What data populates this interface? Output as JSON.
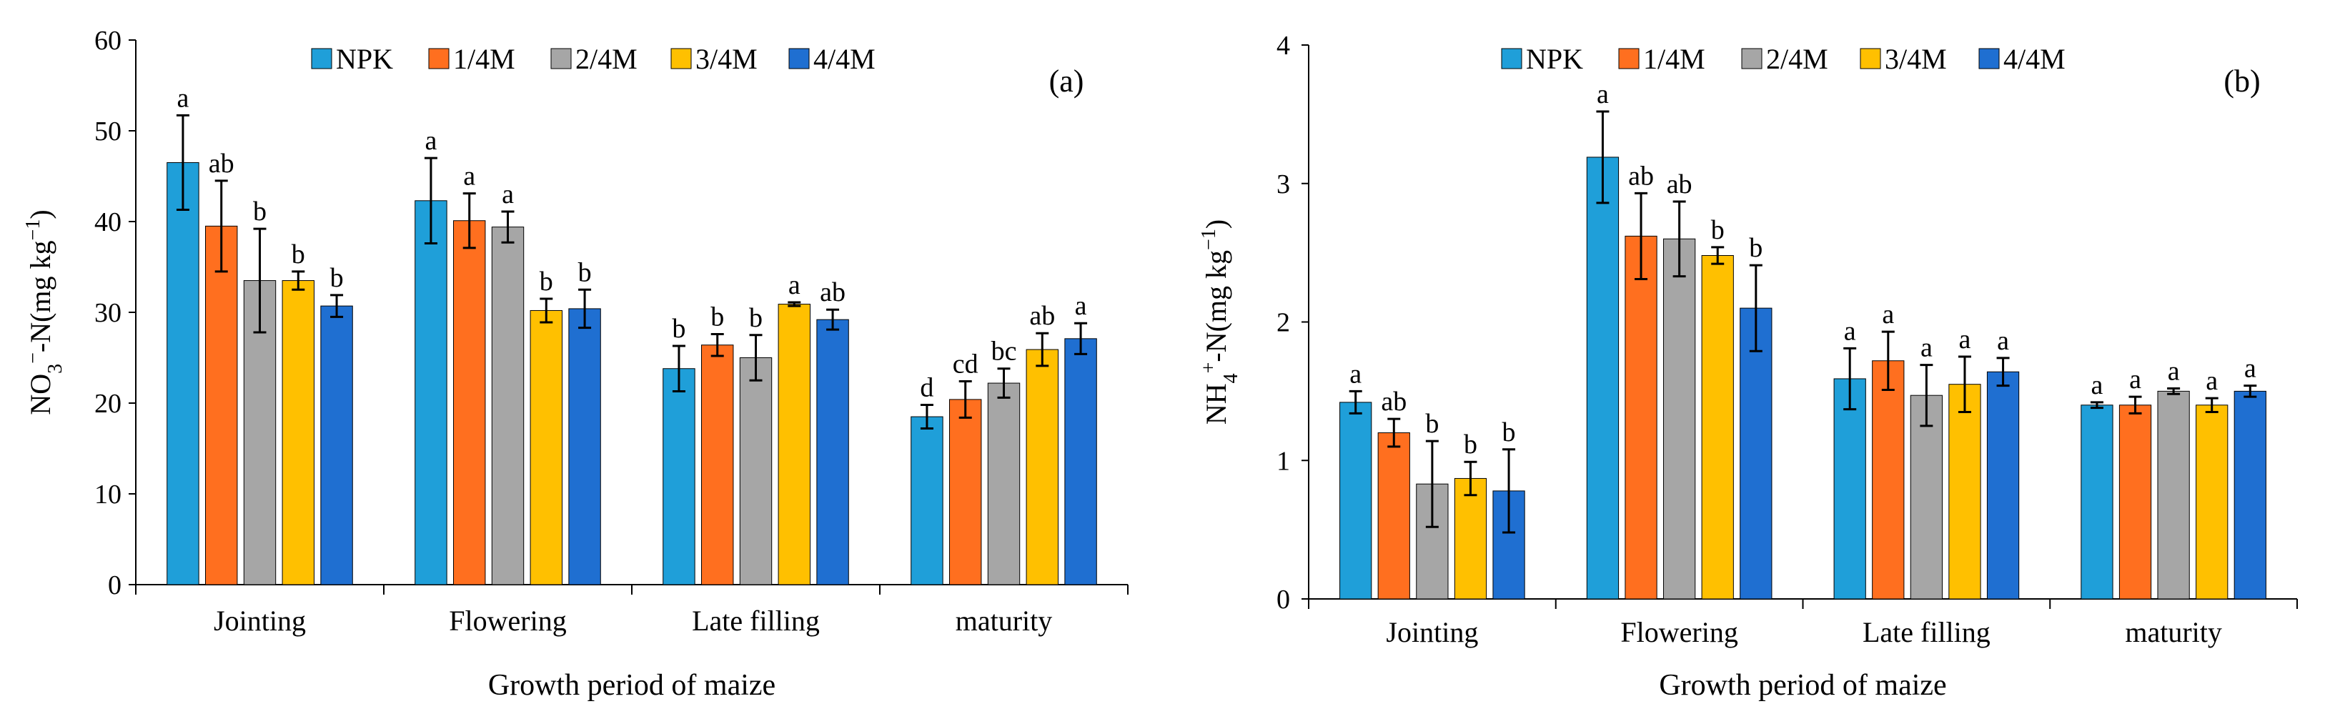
{
  "series_colors": [
    "#1f9fd9",
    "#ff6f1f",
    "#a6a6a6",
    "#ffc000",
    "#1f6fd1"
  ],
  "chart_data": [
    {
      "type": "bar",
      "panel_label": "(a)",
      "ylabel": "NO3−-N(mg kg−1)",
      "ylabel_parts": {
        "base": "NO",
        "sub": "3",
        "sup": "−",
        "rest": "-N(mg kg",
        "unit_sup": "−1",
        "close": ")"
      },
      "xlabel": "Growth period of maize",
      "categories": [
        "Jointing",
        "Flowering",
        "Late filling",
        "maturity"
      ],
      "ylim": [
        0,
        60
      ],
      "yticks": [
        0,
        10,
        20,
        30,
        40,
        50,
        60
      ],
      "legend_position": "top",
      "series": [
        {
          "name": "NPK",
          "values": [
            46.5,
            42.3,
            23.8,
            18.5
          ],
          "errors": [
            5.2,
            4.7,
            2.5,
            1.3
          ],
          "letters": [
            "a",
            "a",
            "b",
            "d"
          ]
        },
        {
          "name": "1/4M",
          "values": [
            39.5,
            40.1,
            26.4,
            20.4
          ],
          "errors": [
            5.0,
            3.0,
            1.2,
            2.0
          ],
          "letters": [
            "ab",
            "a",
            "b",
            "cd"
          ]
        },
        {
          "name": "2/4M",
          "values": [
            33.5,
            39.4,
            25.0,
            22.2
          ],
          "errors": [
            5.7,
            1.7,
            2.5,
            1.6
          ],
          "letters": [
            "b",
            "a",
            "b",
            "bc"
          ]
        },
        {
          "name": "3/4M",
          "values": [
            33.5,
            30.2,
            30.9,
            25.9
          ],
          "errors": [
            1.0,
            1.3,
            0.2,
            1.8
          ],
          "letters": [
            "b",
            "b",
            "a",
            "ab"
          ]
        },
        {
          "name": "4/4M",
          "values": [
            30.7,
            30.4,
            29.2,
            27.1
          ],
          "errors": [
            1.2,
            2.1,
            1.1,
            1.7
          ],
          "letters": [
            "b",
            "b",
            "ab",
            "a"
          ]
        }
      ]
    },
    {
      "type": "bar",
      "panel_label": "(b)",
      "ylabel": "NH4+-N(mg kg−1)",
      "ylabel_parts": {
        "base": "NH",
        "sub": "4",
        "sup": "+",
        "rest": "-N(mg kg",
        "unit_sup": "−1",
        "close": ")"
      },
      "xlabel": "Growth period of maize",
      "categories": [
        "Jointing",
        "Flowering",
        "Late filling",
        "maturity"
      ],
      "ylim": [
        0,
        4
      ],
      "yticks": [
        0,
        1,
        2,
        3,
        4
      ],
      "legend_position": "top",
      "series": [
        {
          "name": "NPK",
          "values": [
            1.42,
            3.19,
            1.59,
            1.4
          ],
          "errors": [
            0.08,
            0.33,
            0.22,
            0.02
          ],
          "letters": [
            "a",
            "a",
            "a",
            "a"
          ]
        },
        {
          "name": "1/4M",
          "values": [
            1.2,
            2.62,
            1.72,
            1.4
          ],
          "errors": [
            0.1,
            0.31,
            0.21,
            0.06
          ],
          "letters": [
            "ab",
            "ab",
            "a",
            "a"
          ]
        },
        {
          "name": "2/4M",
          "values": [
            0.83,
            2.6,
            1.47,
            1.5
          ],
          "errors": [
            0.31,
            0.27,
            0.22,
            0.02
          ],
          "letters": [
            "b",
            "ab",
            "a",
            "a"
          ]
        },
        {
          "name": "3/4M",
          "values": [
            0.87,
            2.48,
            1.55,
            1.4
          ],
          "errors": [
            0.12,
            0.06,
            0.2,
            0.05
          ],
          "letters": [
            "b",
            "b",
            "a",
            "a"
          ]
        },
        {
          "name": "4/4M",
          "values": [
            0.78,
            2.1,
            1.64,
            1.5
          ],
          "errors": [
            0.3,
            0.31,
            0.1,
            0.04
          ],
          "letters": [
            "b",
            "b",
            "a",
            "a"
          ]
        }
      ]
    }
  ]
}
